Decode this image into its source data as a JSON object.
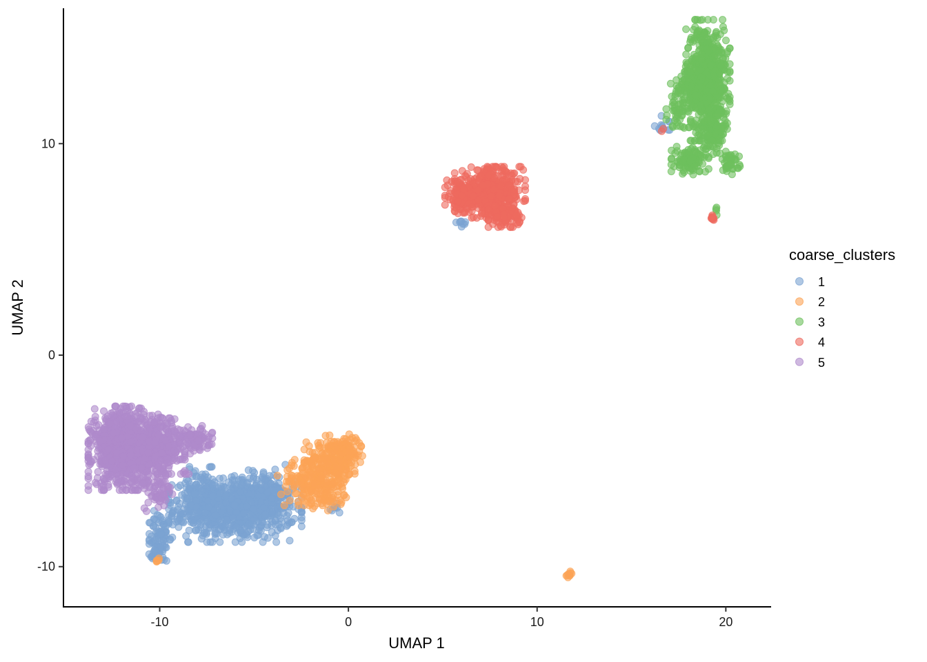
{
  "chart_data": {
    "type": "scatter",
    "title": "",
    "xlabel": "UMAP 1",
    "ylabel": "UMAP 2",
    "xlim": [
      -15.1,
      22.4
    ],
    "ylim": [
      -11.9,
      16.4
    ],
    "x_ticks": [
      -10,
      0,
      10,
      20
    ],
    "y_ticks": [
      -10,
      0,
      10
    ],
    "x_tick_labels": [
      "-10",
      "0",
      "10",
      "20"
    ],
    "y_tick_labels": [
      "-10",
      "0",
      "10"
    ],
    "grid": false,
    "legend": {
      "title": "coarse_clusters",
      "position": "right"
    },
    "point_alpha": 0.6,
    "series": [
      {
        "name": "1",
        "color": "#7BA3D2",
        "clusters": [
          {
            "cx": -6.0,
            "cy": -7.3,
            "sx": 1.6,
            "sy": 0.7,
            "n": 700
          },
          {
            "cx": -7.8,
            "cy": -6.6,
            "sx": 0.6,
            "sy": 0.6,
            "n": 120
          },
          {
            "cx": -4.5,
            "cy": -6.5,
            "sx": 0.7,
            "sy": 0.6,
            "n": 120
          },
          {
            "cx": -10.0,
            "cy": -8.6,
            "sx": 0.25,
            "sy": 0.6,
            "n": 80
          },
          {
            "cx": -10.3,
            "cy": -9.5,
            "sx": 0.2,
            "sy": 0.2,
            "n": 15
          },
          {
            "cx": -0.8,
            "cy": -7.2,
            "sx": 0.3,
            "sy": 0.15,
            "n": 8
          },
          {
            "cx": 6.0,
            "cy": 6.2,
            "sx": 0.2,
            "sy": 0.1,
            "n": 8
          },
          {
            "cx": 16.8,
            "cy": 10.9,
            "sx": 0.35,
            "sy": 0.2,
            "n": 12
          }
        ]
      },
      {
        "name": "2",
        "color": "#FCA456",
        "clusters": [
          {
            "cx": -0.8,
            "cy": -5.0,
            "sx": 0.7,
            "sy": 0.55,
            "n": 220
          },
          {
            "cx": -2.0,
            "cy": -6.0,
            "sx": 0.8,
            "sy": 0.5,
            "n": 160
          },
          {
            "cx": -0.2,
            "cy": -4.4,
            "sx": 0.4,
            "sy": 0.3,
            "n": 60
          },
          {
            "cx": -1.0,
            "cy": -6.7,
            "sx": 0.4,
            "sy": 0.3,
            "n": 40
          },
          {
            "cx": 11.7,
            "cy": -10.4,
            "sx": 0.1,
            "sy": 0.08,
            "n": 10
          },
          {
            "cx": -10.1,
            "cy": -9.7,
            "sx": 0.06,
            "sy": 0.05,
            "n": 5
          }
        ]
      },
      {
        "name": "3",
        "color": "#6EC05E",
        "clusters": [
          {
            "cx": 19.0,
            "cy": 13.0,
            "sx": 0.55,
            "sy": 1.3,
            "n": 650
          },
          {
            "cx": 18.4,
            "cy": 12.6,
            "sx": 0.6,
            "sy": 0.5,
            "n": 150
          },
          {
            "cx": 18.1,
            "cy": 9.2,
            "sx": 0.45,
            "sy": 0.3,
            "n": 120
          },
          {
            "cx": 19.3,
            "cy": 10.6,
            "sx": 0.35,
            "sy": 0.5,
            "n": 90
          },
          {
            "cx": 20.2,
            "cy": 9.1,
            "sx": 0.25,
            "sy": 0.25,
            "n": 40
          },
          {
            "cx": 17.5,
            "cy": 11.4,
            "sx": 0.3,
            "sy": 0.3,
            "n": 30
          },
          {
            "cx": 19.5,
            "cy": 6.9,
            "sx": 0.05,
            "sy": 0.15,
            "n": 4
          }
        ]
      },
      {
        "name": "4",
        "color": "#EE6A5F",
        "clusters": [
          {
            "cx": 7.5,
            "cy": 7.7,
            "sx": 0.85,
            "sy": 0.55,
            "n": 450
          },
          {
            "cx": 6.0,
            "cy": 7.5,
            "sx": 0.4,
            "sy": 0.35,
            "n": 120
          },
          {
            "cx": 8.3,
            "cy": 6.6,
            "sx": 0.4,
            "sy": 0.25,
            "n": 100
          },
          {
            "cx": 19.3,
            "cy": 6.5,
            "sx": 0.06,
            "sy": 0.05,
            "n": 10
          },
          {
            "cx": 16.6,
            "cy": 10.7,
            "sx": 0.05,
            "sy": 0.05,
            "n": 2
          }
        ]
      },
      {
        "name": "5",
        "color": "#AF8ACB",
        "clusters": [
          {
            "cx": -11.8,
            "cy": -4.4,
            "sx": 0.9,
            "sy": 0.9,
            "n": 900
          },
          {
            "cx": -10.0,
            "cy": -4.3,
            "sx": 0.7,
            "sy": 0.6,
            "n": 280
          },
          {
            "cx": -8.2,
            "cy": -4.0,
            "sx": 0.45,
            "sy": 0.3,
            "n": 90
          },
          {
            "cx": -10.0,
            "cy": -6.5,
            "sx": 0.4,
            "sy": 0.4,
            "n": 60
          }
        ]
      }
    ]
  }
}
